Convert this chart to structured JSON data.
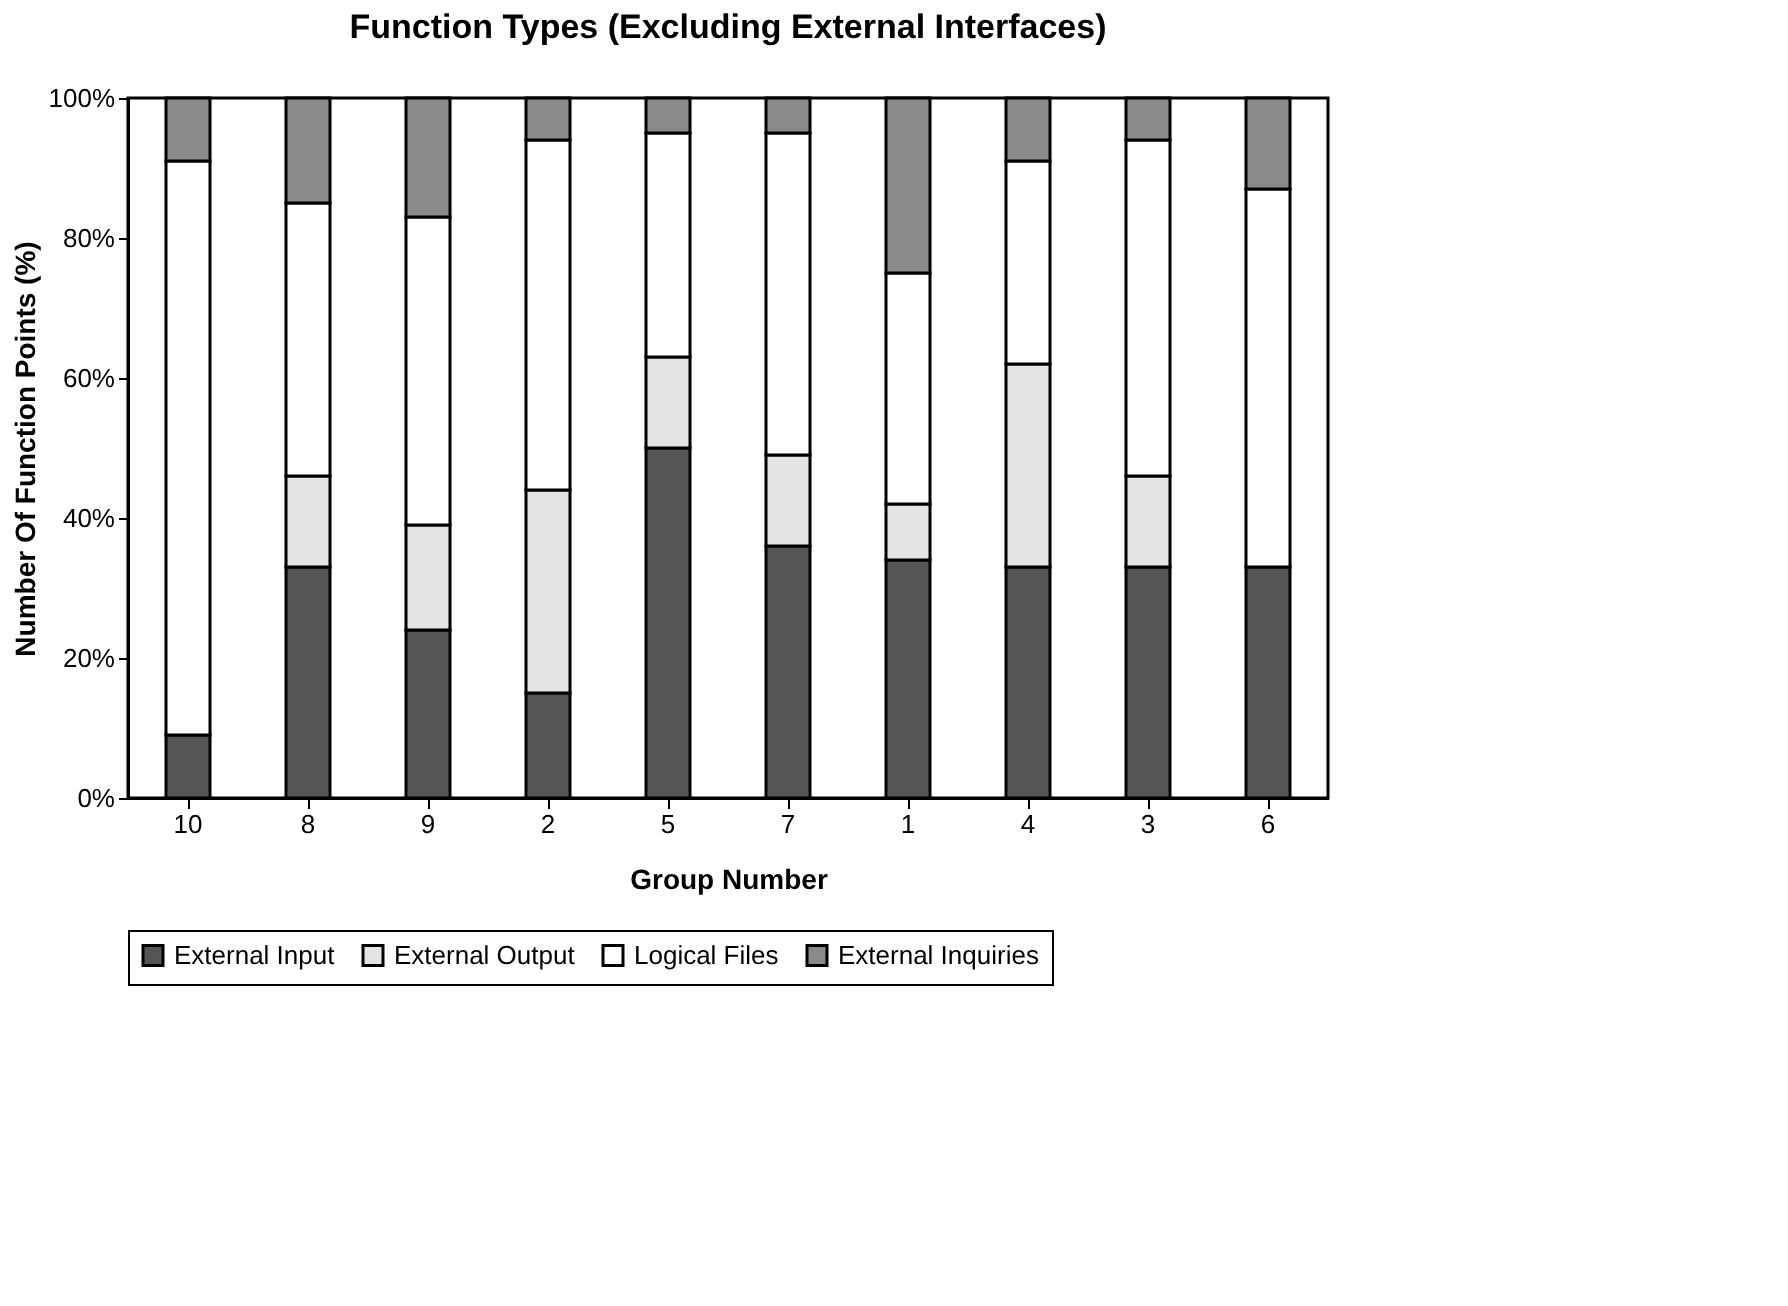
{
  "chart_data": {
    "type": "bar",
    "stacked": true,
    "title": "Function Types (Excluding External Interfaces)",
    "xlabel": "Group Number",
    "ylabel": "Number Of Function Points (%)",
    "categories": [
      "10",
      "8",
      "9",
      "2",
      "5",
      "7",
      "1",
      "4",
      "3",
      "6"
    ],
    "series": [
      {
        "name": "External Input",
        "color": "#555555",
        "values": [
          9,
          33,
          24,
          15,
          50,
          36,
          34,
          33,
          33,
          33
        ]
      },
      {
        "name": "External Output",
        "color": "#e4e4e4",
        "values": [
          0,
          13,
          15,
          29,
          13,
          13,
          8,
          29,
          13,
          0
        ]
      },
      {
        "name": "Logical Files",
        "color": "#ffffff",
        "values": [
          82,
          39,
          44,
          50,
          32,
          46,
          33,
          29,
          48,
          54
        ]
      },
      {
        "name": "External Inquiries",
        "color": "#8a8a8a",
        "values": [
          9,
          15,
          17,
          6,
          5,
          5,
          25,
          9,
          6,
          13
        ]
      }
    ],
    "ylim": [
      0,
      100
    ],
    "yticks": [
      {
        "value": 0,
        "label": "0%"
      },
      {
        "value": 20,
        "label": "20%"
      },
      {
        "value": 40,
        "label": "40%"
      },
      {
        "value": 60,
        "label": "60%"
      },
      {
        "value": 80,
        "label": "80%"
      },
      {
        "value": 100,
        "label": "100%"
      }
    ],
    "grid": false,
    "legend": "bottom"
  }
}
